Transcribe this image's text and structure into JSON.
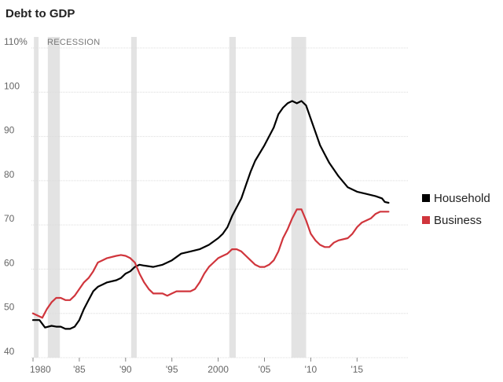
{
  "chart_data": {
    "type": "line",
    "title": "Debt to GDP",
    "xlabel": "",
    "ylabel": "",
    "xlim": [
      1980,
      2018.5
    ],
    "ylim": [
      40,
      110
    ],
    "grid": true,
    "legend_placement": "right",
    "recession_label": "RECESSION",
    "recessions": [
      [
        1980.1,
        1980.6
      ],
      [
        1981.6,
        1982.9
      ],
      [
        1990.6,
        1991.2
      ],
      [
        2001.2,
        2001.9
      ],
      [
        2007.9,
        2009.5
      ]
    ],
    "x_tick_values": [
      1980,
      1985,
      1990,
      1995,
      2000,
      2005,
      2010,
      2015
    ],
    "x_tick_labels": [
      "1980",
      "'85",
      "'90",
      "'95",
      "2000",
      "'05",
      "'10",
      "'15"
    ],
    "y_tick_values": [
      40,
      50,
      60,
      70,
      80,
      90,
      100,
      110
    ],
    "y_tick_labels": [
      "40",
      "50",
      "60",
      "70",
      "80",
      "90",
      "100",
      "110%"
    ],
    "series": [
      {
        "name": "Household",
        "color": "#000000",
        "points": [
          [
            1980,
            48.5
          ],
          [
            1980.7,
            48.5
          ],
          [
            1981.3,
            46.8
          ],
          [
            1982,
            47.2
          ],
          [
            1982.5,
            47
          ],
          [
            1983,
            47
          ],
          [
            1983.5,
            46.5
          ],
          [
            1984,
            46.5
          ],
          [
            1984.5,
            47
          ],
          [
            1985,
            48.5
          ],
          [
            1985.5,
            51
          ],
          [
            1986,
            53
          ],
          [
            1986.5,
            55
          ],
          [
            1987,
            56
          ],
          [
            1987.5,
            56.5
          ],
          [
            1988,
            57
          ],
          [
            1989,
            57.5
          ],
          [
            1989.5,
            58
          ],
          [
            1990,
            59
          ],
          [
            1990.5,
            59.5
          ],
          [
            1991,
            60.5
          ],
          [
            1991.5,
            61
          ],
          [
            1992,
            60.8
          ],
          [
            1993,
            60.5
          ],
          [
            1994,
            61
          ],
          [
            1995,
            62
          ],
          [
            1996,
            63.5
          ],
          [
            1997,
            64
          ],
          [
            1998,
            64.5
          ],
          [
            1999,
            65.5
          ],
          [
            2000,
            67
          ],
          [
            2000.5,
            68
          ],
          [
            2001,
            69.5
          ],
          [
            2001.5,
            72
          ],
          [
            2002,
            74
          ],
          [
            2002.5,
            76
          ],
          [
            2003,
            79
          ],
          [
            2003.5,
            82
          ],
          [
            2004,
            84.5
          ],
          [
            2005,
            88
          ],
          [
            2006,
            92
          ],
          [
            2006.5,
            95
          ],
          [
            2007,
            96.5
          ],
          [
            2007.5,
            97.5
          ],
          [
            2008,
            98
          ],
          [
            2008.5,
            97.5
          ],
          [
            2009,
            98
          ],
          [
            2009.5,
            97
          ],
          [
            2010,
            94
          ],
          [
            2010.5,
            91
          ],
          [
            2011,
            88
          ],
          [
            2011.5,
            86
          ],
          [
            2012,
            84
          ],
          [
            2013,
            81
          ],
          [
            2014,
            78.5
          ],
          [
            2015,
            77.5
          ],
          [
            2016,
            77
          ],
          [
            2017,
            76.5
          ],
          [
            2017.7,
            76
          ],
          [
            2018,
            75.2
          ],
          [
            2018.4,
            75
          ]
        ]
      },
      {
        "name": "Business",
        "color": "#d0353c",
        "points": [
          [
            1980,
            50
          ],
          [
            1980.5,
            49.5
          ],
          [
            1981,
            49
          ],
          [
            1981.5,
            51
          ],
          [
            1982,
            52.5
          ],
          [
            1982.5,
            53.5
          ],
          [
            1983,
            53.5
          ],
          [
            1983.5,
            53
          ],
          [
            1984,
            53
          ],
          [
            1984.5,
            54
          ],
          [
            1985,
            55.5
          ],
          [
            1985.5,
            57
          ],
          [
            1986,
            58
          ],
          [
            1986.5,
            59.5
          ],
          [
            1987,
            61.5
          ],
          [
            1987.5,
            62
          ],
          [
            1988,
            62.5
          ],
          [
            1989,
            63
          ],
          [
            1989.5,
            63.2
          ],
          [
            1990,
            63
          ],
          [
            1990.5,
            62.5
          ],
          [
            1991,
            61.5
          ],
          [
            1991.5,
            59
          ],
          [
            1992,
            57
          ],
          [
            1992.5,
            55.5
          ],
          [
            1993,
            54.5
          ],
          [
            1994,
            54.5
          ],
          [
            1994.5,
            54
          ],
          [
            1995,
            54.5
          ],
          [
            1995.5,
            55
          ],
          [
            1996,
            55
          ],
          [
            1996.5,
            55
          ],
          [
            1997,
            55
          ],
          [
            1997.5,
            55.5
          ],
          [
            1998,
            57
          ],
          [
            1998.5,
            59
          ],
          [
            1999,
            60.5
          ],
          [
            1999.5,
            61.5
          ],
          [
            2000,
            62.5
          ],
          [
            2000.5,
            63
          ],
          [
            2001,
            63.5
          ],
          [
            2001.5,
            64.5
          ],
          [
            2002,
            64.5
          ],
          [
            2002.5,
            64
          ],
          [
            2003,
            63
          ],
          [
            2003.5,
            62
          ],
          [
            2004,
            61
          ],
          [
            2004.5,
            60.5
          ],
          [
            2005,
            60.5
          ],
          [
            2005.5,
            61
          ],
          [
            2006,
            62
          ],
          [
            2006.5,
            64
          ],
          [
            2007,
            67
          ],
          [
            2007.5,
            69
          ],
          [
            2008,
            71.5
          ],
          [
            2008.5,
            73.5
          ],
          [
            2009,
            73.5
          ],
          [
            2009.5,
            71
          ],
          [
            2010,
            68
          ],
          [
            2010.5,
            66.5
          ],
          [
            2011,
            65.5
          ],
          [
            2011.5,
            65
          ],
          [
            2012,
            65
          ],
          [
            2012.5,
            66
          ],
          [
            2013,
            66.5
          ],
          [
            2014,
            67
          ],
          [
            2014.5,
            68
          ],
          [
            2015,
            69.5
          ],
          [
            2015.5,
            70.5
          ],
          [
            2016,
            71
          ],
          [
            2016.5,
            71.5
          ],
          [
            2017,
            72.5
          ],
          [
            2017.5,
            73
          ],
          [
            2018,
            73
          ],
          [
            2018.4,
            73
          ]
        ]
      }
    ]
  }
}
